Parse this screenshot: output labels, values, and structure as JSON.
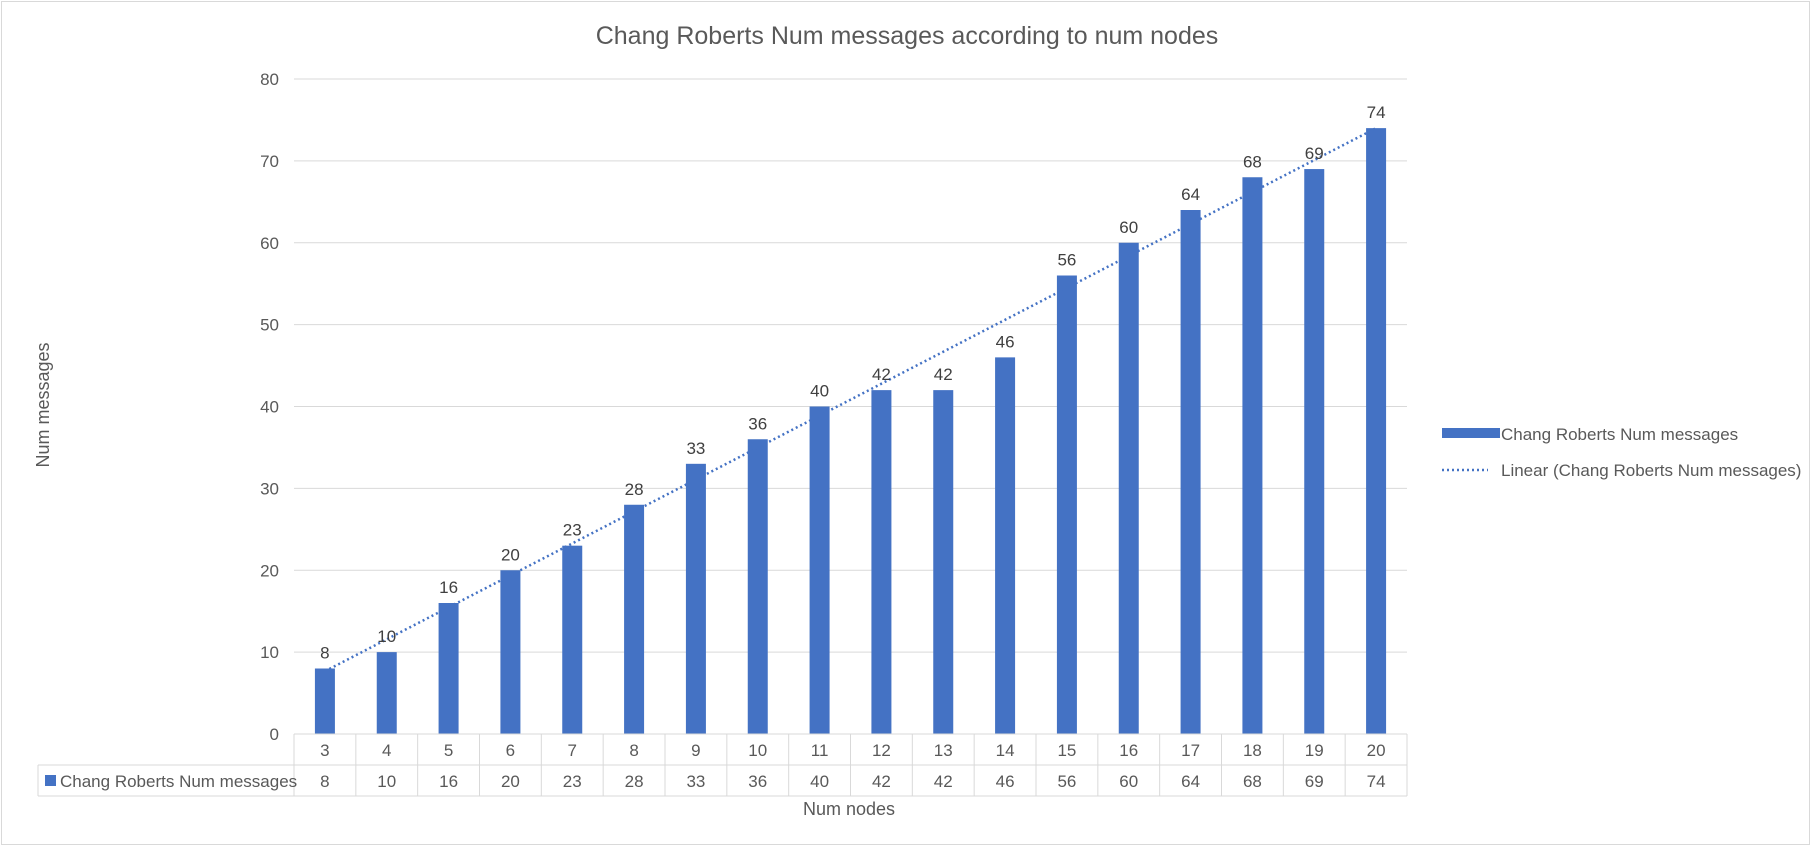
{
  "chart_data": {
    "type": "bar",
    "title": "Chang Roberts Num messages according to num nodes",
    "xlabel": "Num nodes",
    "ylabel": "Num messages",
    "categories": [
      "3",
      "4",
      "5",
      "6",
      "7",
      "8",
      "9",
      "10",
      "11",
      "12",
      "13",
      "14",
      "15",
      "16",
      "17",
      "18",
      "19",
      "20"
    ],
    "series": [
      {
        "name": "Chang Roberts Num messages",
        "values": [
          8,
          10,
          16,
          20,
          23,
          28,
          33,
          36,
          40,
          42,
          42,
          46,
          56,
          60,
          64,
          68,
          69,
          74
        ],
        "color": "#4472c4"
      }
    ],
    "trendline": {
      "type": "linear",
      "name": "Linear (Chang Roberts Num messages)",
      "color": "#4472c4",
      "style": "dotted"
    },
    "ylim": [
      0,
      80
    ],
    "yticks": [
      0,
      10,
      20,
      30,
      40,
      50,
      60,
      70,
      80
    ],
    "grid": true,
    "legend": "right",
    "data_labels": true,
    "data_table": true,
    "colors": {
      "gridline": "#d9d9d9",
      "text": "#595959"
    }
  }
}
